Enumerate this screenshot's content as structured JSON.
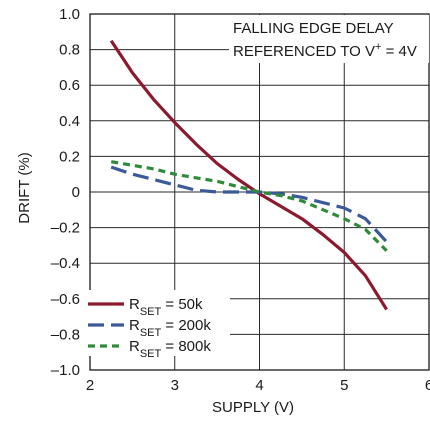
{
  "chart_data": {
    "type": "line",
    "xlabel": "SUPPLY (V)",
    "ylabel": "DRIFT (%)",
    "xlim": [
      2,
      6
    ],
    "ylim": [
      -1.0,
      1.0
    ],
    "xticks": [
      "2",
      "3",
      "4",
      "5",
      "6"
    ],
    "yticks": [
      "1.0",
      "0.8",
      "0.6",
      "0.4",
      "0.2",
      "0",
      "–0.2",
      "–0.4",
      "–0.6",
      "–0.8",
      "–1.0"
    ],
    "grid": true,
    "legend_position": "bottom-left",
    "annotation": {
      "line1": "FALLING EDGE DELAY",
      "line2_prefix": "REFERENCED TO V",
      "line2_sup": "+",
      "line2_suffix": " = 4V"
    },
    "series": [
      {
        "name": "RSET = 50k",
        "label_main": "R",
        "label_sub": "SET",
        "label_value": " = 50k",
        "color": "#8b1a2e",
        "dash": "solid",
        "x": [
          2.25,
          2.5,
          2.75,
          3.0,
          3.25,
          3.5,
          3.75,
          4.0,
          4.25,
          4.5,
          4.75,
          5.0,
          5.25,
          5.5
        ],
        "y": [
          0.85,
          0.67,
          0.52,
          0.39,
          0.27,
          0.16,
          0.07,
          -0.01,
          -0.08,
          -0.15,
          -0.24,
          -0.34,
          -0.47,
          -0.66
        ]
      },
      {
        "name": "RSET = 200k",
        "label_main": "R",
        "label_sub": "SET",
        "label_value": " = 200k",
        "color": "#3a5a98",
        "dash": "long",
        "x": [
          2.25,
          2.5,
          2.75,
          3.0,
          3.25,
          3.5,
          3.75,
          4.0,
          4.25,
          4.5,
          4.75,
          5.0,
          5.25,
          5.5
        ],
        "y": [
          0.14,
          0.1,
          0.07,
          0.04,
          0.01,
          0.0,
          0.0,
          0.0,
          -0.01,
          -0.03,
          -0.06,
          -0.09,
          -0.15,
          -0.28
        ]
      },
      {
        "name": "RSET = 800k",
        "label_main": "R",
        "label_sub": "SET",
        "label_value": " = 800k",
        "color": "#2e8b3a",
        "dash": "short",
        "x": [
          2.25,
          2.5,
          2.75,
          3.0,
          3.25,
          3.5,
          3.75,
          4.0,
          4.25,
          4.5,
          4.75,
          5.0,
          5.25,
          5.5
        ],
        "y": [
          0.17,
          0.15,
          0.13,
          0.1,
          0.08,
          0.06,
          0.03,
          0.0,
          -0.02,
          -0.05,
          -0.1,
          -0.15,
          -0.21,
          -0.33
        ]
      }
    ]
  }
}
